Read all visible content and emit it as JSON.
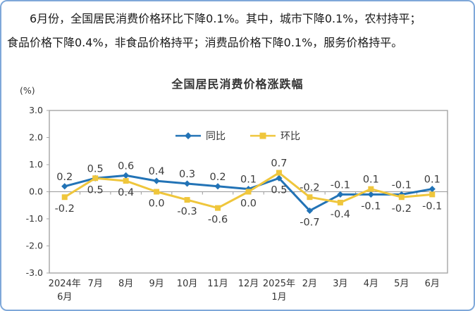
{
  "intro": {
    "lines": [
      "6月份，全国居民消费价格环比下降0.1%。其中，城市下降0.1%，农村持平；",
      "食品价格下降0.4%，非食品价格持平；消费品价格下降0.1%，服务价格持平。"
    ]
  },
  "chart_data": {
    "type": "line",
    "title": "全国居民消费价格涨跌幅",
    "unit_label": "(%)",
    "categories": [
      [
        "2024年",
        "6月"
      ],
      "7月",
      "8月",
      "9月",
      "10月",
      "11月",
      "12月",
      [
        "2025年",
        "1月"
      ],
      "2月",
      "3月",
      "4月",
      "5月",
      "6月"
    ],
    "series": [
      {
        "name": "同比",
        "color": "#2273b6",
        "marker": "diamond",
        "values": [
          0.2,
          0.5,
          0.6,
          0.4,
          0.3,
          0.2,
          0.1,
          0.5,
          -0.7,
          -0.1,
          -0.1,
          -0.1,
          0.1
        ]
      },
      {
        "name": "环比",
        "color": "#efc63c",
        "marker": "square",
        "values": [
          -0.2,
          0.5,
          0.4,
          0.0,
          -0.3,
          -0.6,
          0.0,
          0.7,
          -0.2,
          -0.4,
          0.1,
          -0.2,
          -0.1
        ]
      }
    ],
    "ylim": [
      -3.0,
      3.0
    ],
    "yticks": [
      "3.0",
      "2.0",
      "1.0",
      "0.0",
      "-1.0",
      "-2.0",
      "-3.0"
    ],
    "grid": "zero-axis-only",
    "legend_position": "top-center-inside"
  },
  "colors": {
    "frame_border": "#7fa8d9",
    "plot_border": "#a6a6a6",
    "axis_line": "#9a9a9a",
    "tick_text": "#333333",
    "data_label_text": "#3a3a3a"
  }
}
